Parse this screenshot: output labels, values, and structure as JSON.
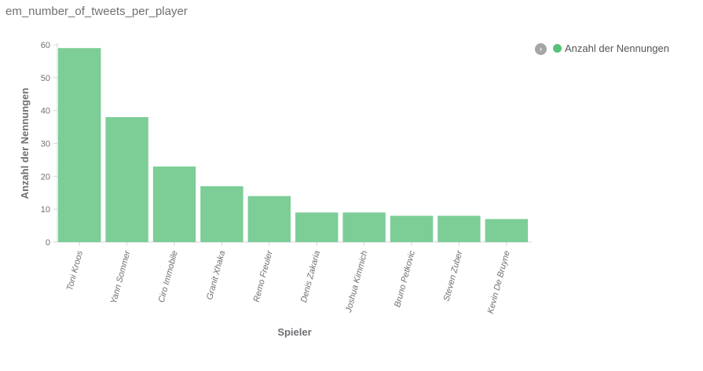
{
  "title": "em_number_of_tweets_per_player",
  "legend": {
    "toggle_glyph": "›",
    "toggle_icon": "chevron-right-icon"
  },
  "colors": {
    "bar": "#7ccd96",
    "legend_dot": "#57c17b",
    "axis": "#d3d5d9",
    "tick_text": "#6f7073",
    "axis_title": "#6f7073"
  },
  "chart_data": {
    "type": "bar",
    "title": "",
    "xlabel": "Spieler",
    "ylabel": "Anzahl der Nennungen",
    "categories": [
      "Toni Kroos",
      "Yann Sommer",
      "Ciro Immobile",
      "Granit Xhaka",
      "Remo Freuler",
      "Denis Zakaria",
      "Joshua Kimmich",
      "Bruno Petkovic",
      "Steven Zuber",
      "Kevin De Bruyne"
    ],
    "series": [
      {
        "name": "Anzahl der Nennungen",
        "values": [
          59,
          38,
          23,
          17,
          14,
          9,
          9,
          8,
          8,
          7
        ]
      }
    ],
    "ylim": [
      0,
      60
    ],
    "yticks": [
      0,
      10,
      20,
      30,
      40,
      50,
      60
    ],
    "grid": false,
    "legend_position": "top-right"
  }
}
